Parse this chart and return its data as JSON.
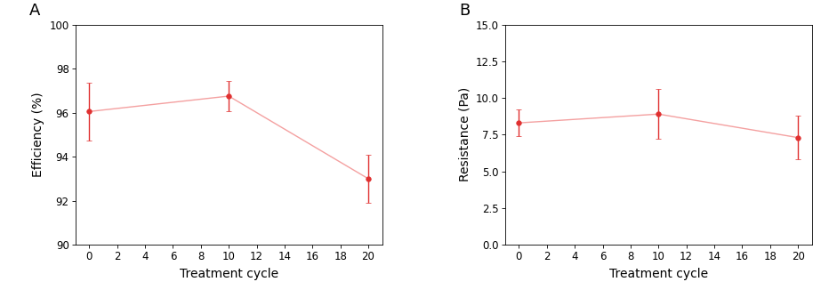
{
  "panel_A": {
    "x": [
      0,
      10,
      20
    ],
    "y": [
      96.05,
      96.75,
      93.0
    ],
    "yerr": [
      1.3,
      0.7,
      1.1
    ],
    "ylabel": "Efficiency (%)",
    "xlabel": "Treatment cycle",
    "ylim": [
      90,
      100
    ],
    "yticks": [
      90,
      92,
      94,
      96,
      98,
      100
    ],
    "xticks": [
      0,
      2,
      4,
      6,
      8,
      10,
      12,
      14,
      16,
      18,
      20
    ],
    "label": "A"
  },
  "panel_B": {
    "x": [
      0,
      10,
      20
    ],
    "y": [
      8.3,
      8.9,
      7.3
    ],
    "yerr": [
      0.9,
      1.7,
      1.5
    ],
    "ylabel": "Resistance (Pa)",
    "xlabel": "Treatment cycle",
    "ylim": [
      0.0,
      15.0
    ],
    "yticks": [
      0.0,
      2.5,
      5.0,
      7.5,
      10.0,
      12.5,
      15.0
    ],
    "xticks": [
      0,
      2,
      4,
      6,
      8,
      10,
      12,
      14,
      16,
      18,
      20
    ],
    "label": "B"
  },
  "line_color": "#F4A0A0",
  "marker_color": "#E03030",
  "marker": "o",
  "markersize": 4,
  "linewidth": 1.0,
  "elinewidth": 1.0,
  "capsize": 2.5,
  "label_fontsize": 13,
  "tick_fontsize": 8.5,
  "axis_label_fontsize": 10
}
